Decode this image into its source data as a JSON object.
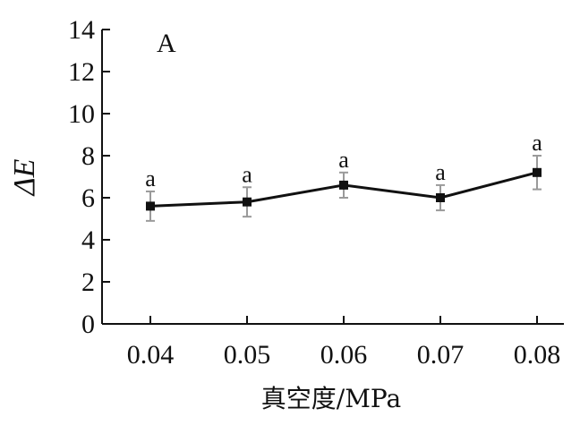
{
  "chart_data": {
    "type": "line",
    "panel_label": "A",
    "xlabel": "真空度/MPa",
    "ylabel": "ΔE",
    "categories": [
      "0.04",
      "0.05",
      "0.06",
      "0.07",
      "0.08"
    ],
    "y_ticks": [
      "0",
      "2",
      "4",
      "6",
      "8",
      "10",
      "12",
      "14"
    ],
    "ylim": [
      0,
      14
    ],
    "grid": false,
    "series": [
      {
        "values": [
          5.6,
          5.8,
          6.6,
          6.0,
          7.2
        ],
        "error": [
          0.7,
          0.7,
          0.6,
          0.6,
          0.8
        ],
        "significance": [
          "a",
          "a",
          "a",
          "a",
          "a"
        ]
      }
    ],
    "colors": {
      "line": "#111111",
      "error_bar": "#9a9a9a"
    }
  }
}
